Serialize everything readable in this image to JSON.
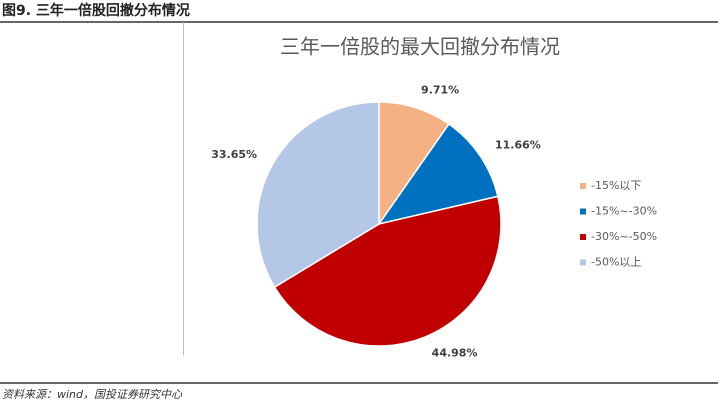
{
  "header": {
    "title": "图9. 三年一倍股回撤分布情况"
  },
  "chart_data": {
    "type": "pie",
    "title": "三年一倍股的最大回撤分布情况",
    "categories": [
      "-15%以下",
      "-15%~-30%",
      "-30%~-50%",
      "-50%以上"
    ],
    "values": [
      9.71,
      11.66,
      44.98,
      33.65
    ],
    "value_labels": [
      "9.71%",
      "11.66%",
      "44.98%",
      "33.65%"
    ],
    "colors": [
      "#f4b183",
      "#0070c0",
      "#c00000",
      "#b4c7e7"
    ],
    "legend": "right"
  },
  "source": "资料来源：wind，国投证券研究中心"
}
